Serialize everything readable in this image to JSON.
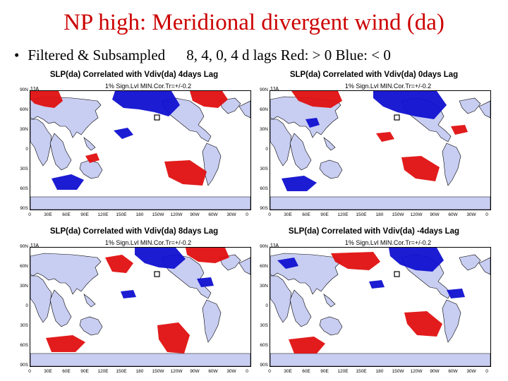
{
  "slide": {
    "title": "NP high: Meridional divergent wind (da)",
    "bullet": {
      "marker": "•",
      "left_text": "Filtered & Subsampled",
      "right_text": "8, 4, 0, 4 d lags   Red: > 0   Blue: < 0"
    }
  },
  "colors": {
    "positive": "#e01010",
    "negative": "#1010d0",
    "land": "#c8cdf2"
  },
  "panels": [
    {
      "title": "SLP(da) Correlated with Vdiv(da) 4days Lag",
      "subtitle": "1% Sign.Lvl  MIN.Cor.Tr=+/-0.2",
      "season": "JJA"
    },
    {
      "title": "SLP(da) Correlated with Vdiv(da) 0days Lag",
      "subtitle": "1% Sign.Lvl  MIN.Cor.Tr=+/-0.2",
      "season": "JJA"
    },
    {
      "title": "SLP(da) Correlated with Vdiv(da) 8days Lag",
      "subtitle": "1% Sign.Lvl  MIN.Cor.Tr=+/-0.2",
      "season": "JJA"
    },
    {
      "title": "SLP(da) Correlated with Vdiv(da) -4days Lag",
      "subtitle": "1% Sign.Lvl  MIN.Cor.Tr=+/-0.2",
      "season": "JJA"
    }
  ],
  "axes": {
    "y_ticks": [
      "90N",
      "60N",
      "30N",
      "0",
      "30S",
      "60S",
      "90S"
    ],
    "x_ticks": [
      "0",
      "30E",
      "60E",
      "90E",
      "120E",
      "150E",
      "180",
      "150W",
      "120W",
      "90W",
      "60W",
      "30W",
      "0"
    ]
  }
}
